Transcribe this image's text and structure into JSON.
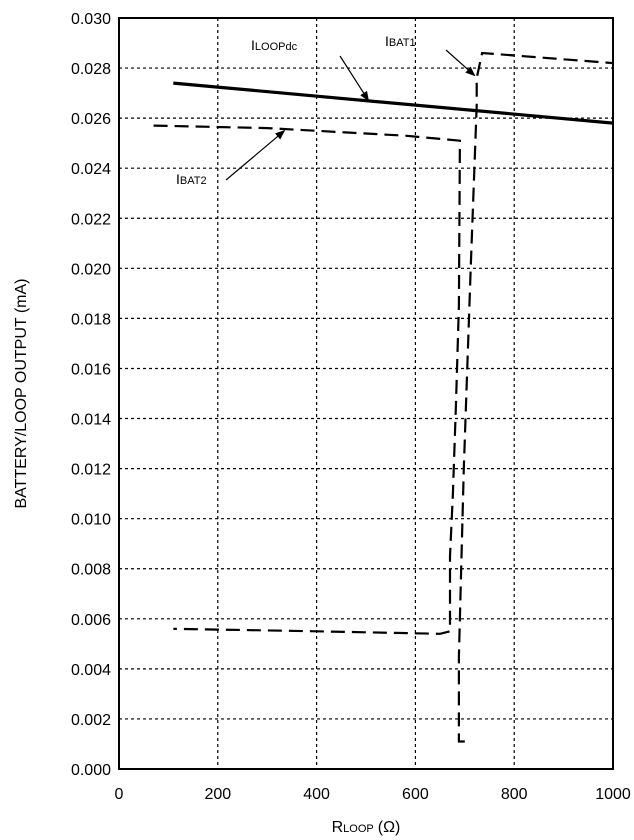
{
  "chart_data": {
    "type": "line",
    "xlabel": "R",
    "xlabel_sub": "LOOP",
    "xlabel_unit": "(Ω)",
    "ylabel": "BATTERY/LOOP OUTPUT (mA)",
    "xlim": [
      0,
      1000
    ],
    "ylim": [
      0.0,
      0.03
    ],
    "x_ticks": [
      0,
      200,
      400,
      600,
      800,
      1000
    ],
    "x_tick_labels": [
      "0",
      "200",
      "400",
      "600",
      "800",
      "1000"
    ],
    "y_ticks": [
      0.0,
      0.002,
      0.004,
      0.006,
      0.008,
      0.01,
      0.012,
      0.014,
      0.016,
      0.018,
      0.02,
      0.022,
      0.024,
      0.026,
      0.028,
      0.03
    ],
    "y_tick_labels": [
      "0.000",
      "0.002",
      "0.004",
      "0.006",
      "0.008",
      "0.010",
      "0.012",
      "0.014",
      "0.016",
      "0.018",
      "0.020",
      "0.022",
      "0.024",
      "0.026",
      "0.028",
      "0.030"
    ],
    "grid": true,
    "legend": "none",
    "series": [
      {
        "name": "ILOOPdc",
        "style": "solid",
        "x": [
          110,
          1000
        ],
        "y": [
          0.0274,
          0.0258
        ]
      },
      {
        "name": "IBAT1",
        "style": "dashed",
        "x": [
          700,
          688,
          688,
          698,
          712,
          724,
          724,
          735,
          1000
        ],
        "y": [
          0.0011,
          0.0011,
          0.0045,
          0.012,
          0.02,
          0.0265,
          0.0276,
          0.0286,
          0.0282
        ]
      },
      {
        "name": "IBAT2",
        "style": "dashed",
        "x": [
          70,
          300,
          580,
          690,
          688,
          682,
          676,
          670,
          670,
          650,
          400,
          110
        ],
        "y": [
          0.0257,
          0.0256,
          0.0253,
          0.0251,
          0.0185,
          0.0145,
          0.011,
          0.0085,
          0.0055,
          0.0054,
          0.0055,
          0.0056
        ]
      }
    ],
    "annotations": [
      {
        "main": "I",
        "sub": "LOOPdc",
        "target_x": 505,
        "target_y": 0.0267
      },
      {
        "main": "I",
        "sub": "BAT1",
        "target_x": 720,
        "target_y": 0.0277
      },
      {
        "main": "I",
        "sub": "BAT2",
        "target_x": 335,
        "target_y": 0.0255
      }
    ]
  }
}
